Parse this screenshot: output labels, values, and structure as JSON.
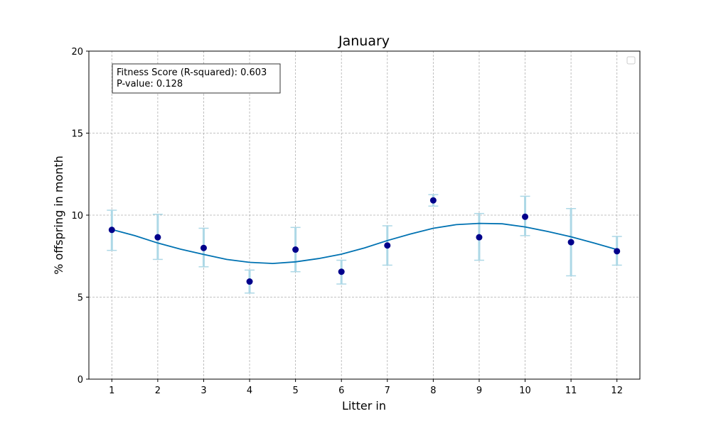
{
  "chart_data": {
    "type": "scatter",
    "title": "January",
    "xlabel": "Litter in",
    "ylabel": "% offspring in month",
    "xlim": [
      0.5,
      12.5
    ],
    "ylim": [
      0,
      20
    ],
    "xticks": [
      1,
      2,
      3,
      4,
      5,
      6,
      7,
      8,
      9,
      10,
      11,
      12
    ],
    "yticks": [
      0,
      5,
      10,
      15,
      20
    ],
    "grid": true,
    "legend": "top-right (empty)",
    "series": [
      {
        "points": [
          {
            "x": 1,
            "y": 9.1,
            "err_low": 7.85,
            "err_high": 10.3
          },
          {
            "x": 2,
            "y": 8.65,
            "err_low": 7.3,
            "err_high": 10.05
          },
          {
            "x": 3,
            "y": 8.0,
            "err_low": 6.85,
            "err_high": 9.2
          },
          {
            "x": 4,
            "y": 5.95,
            "err_low": 5.25,
            "err_high": 6.65
          },
          {
            "x": 5,
            "y": 7.9,
            "err_low": 6.55,
            "err_high": 9.25
          },
          {
            "x": 6,
            "y": 6.55,
            "err_low": 5.8,
            "err_high": 7.25
          },
          {
            "x": 7,
            "y": 8.15,
            "err_low": 6.95,
            "err_high": 9.35
          },
          {
            "x": 8,
            "y": 10.9,
            "err_low": 10.55,
            "err_high": 11.25
          },
          {
            "x": 9,
            "y": 8.65,
            "err_low": 7.25,
            "err_high": 10.1
          },
          {
            "x": 10,
            "y": 9.9,
            "err_low": 8.75,
            "err_high": 11.15
          },
          {
            "x": 11,
            "y": 8.35,
            "err_low": 6.3,
            "err_high": 10.4
          },
          {
            "x": 12,
            "y": 7.8,
            "err_low": 6.95,
            "err_high": 8.7
          }
        ]
      }
    ],
    "fit_curve": {
      "x": [
        1,
        1.5,
        2,
        2.5,
        3,
        3.5,
        4,
        4.5,
        5,
        5.5,
        6,
        6.5,
        7,
        7.5,
        8,
        8.5,
        9,
        9.5,
        10,
        10.5,
        11,
        11.5,
        12
      ],
      "y": [
        9.12,
        8.75,
        8.3,
        7.92,
        7.6,
        7.3,
        7.12,
        7.05,
        7.15,
        7.35,
        7.62,
        8.0,
        8.45,
        8.85,
        9.2,
        9.42,
        9.5,
        9.47,
        9.28,
        9.0,
        8.68,
        8.3,
        7.9
      ]
    },
    "annotation": {
      "line1": "Fitness Score (R-squared): 0.603",
      "line2": "P-value: 0.128"
    },
    "colors": {
      "point": "#00008b",
      "error_bar": "#add8e6",
      "fit_line": "#0072b2",
      "grid": "#b0b0b0"
    }
  }
}
